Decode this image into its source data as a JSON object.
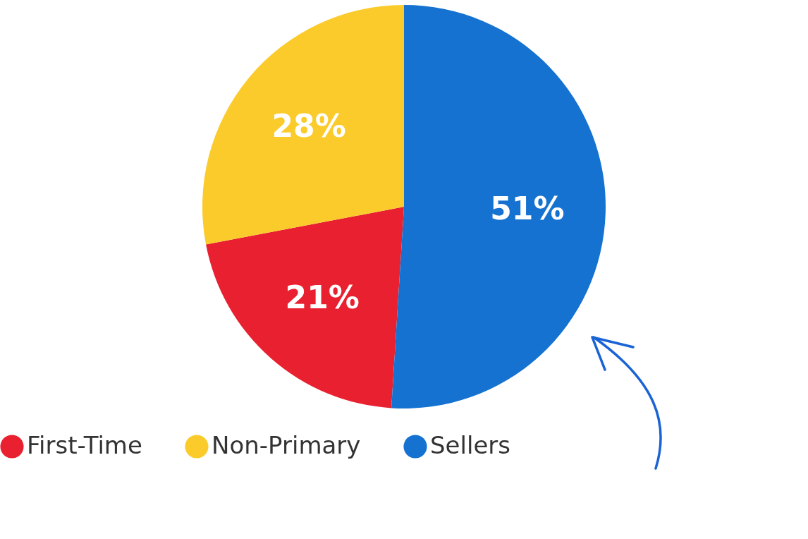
{
  "chart_data": {
    "type": "pie",
    "categories": [
      "First-Time",
      "Non-Primary",
      "Sellers"
    ],
    "values": [
      21,
      28,
      51
    ],
    "colors": [
      "#e8202f",
      "#fbcb2b",
      "#1572d0"
    ],
    "value_labels": [
      "21%",
      "28%",
      "51%"
    ],
    "legend": "bottom"
  }
}
